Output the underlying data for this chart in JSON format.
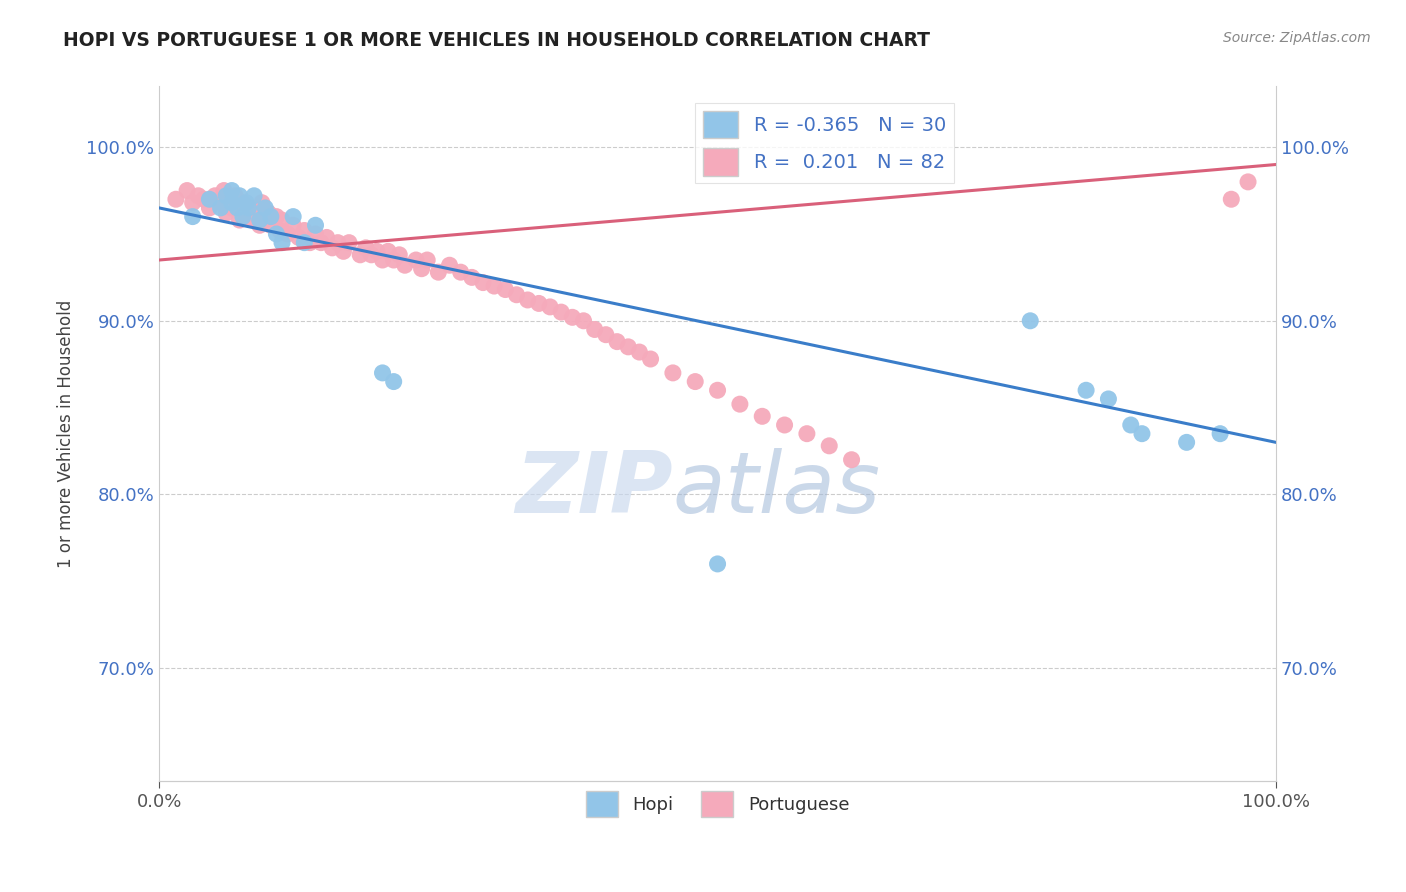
{
  "title": "HOPI VS PORTUGUESE 1 OR MORE VEHICLES IN HOUSEHOLD CORRELATION CHART",
  "source_text": "Source: ZipAtlas.com",
  "ylabel": "1 or more Vehicles in Household",
  "xlim": [
    0.0,
    1.0
  ],
  "ylim": [
    0.635,
    1.035
  ],
  "yticks": [
    0.7,
    0.8,
    0.9,
    1.0
  ],
  "ytick_labels": [
    "70.0%",
    "80.0%",
    "90.0%",
    "100.0%"
  ],
  "xtick_labels": [
    "0.0%",
    "100.0%"
  ],
  "hopi_R": -0.365,
  "hopi_N": 30,
  "portuguese_R": 0.201,
  "portuguese_N": 82,
  "hopi_color": "#92C5E8",
  "portuguese_color": "#F5AABB",
  "hopi_line_color": "#3A7DC9",
  "portuguese_line_color": "#D9607A",
  "watermark_zip": "ZIP",
  "watermark_atlas": "atlas",
  "hopi_x": [
    0.03,
    0.045,
    0.055,
    0.06,
    0.065,
    0.065,
    0.07,
    0.072,
    0.075,
    0.078,
    0.08,
    0.085,
    0.09,
    0.095,
    0.1,
    0.105,
    0.11,
    0.12,
    0.13,
    0.14,
    0.2,
    0.21,
    0.5,
    0.78,
    0.83,
    0.85,
    0.87,
    0.88,
    0.92,
    0.95
  ],
  "hopi_y": [
    0.96,
    0.97,
    0.965,
    0.972,
    0.968,
    0.975,
    0.965,
    0.972,
    0.96,
    0.968,
    0.965,
    0.972,
    0.958,
    0.965,
    0.96,
    0.95,
    0.945,
    0.96,
    0.945,
    0.955,
    0.87,
    0.865,
    0.76,
    0.9,
    0.86,
    0.855,
    0.84,
    0.835,
    0.83,
    0.835
  ],
  "portuguese_x": [
    0.015,
    0.025,
    0.03,
    0.035,
    0.04,
    0.045,
    0.05,
    0.055,
    0.058,
    0.06,
    0.062,
    0.065,
    0.068,
    0.072,
    0.075,
    0.08,
    0.082,
    0.085,
    0.088,
    0.09,
    0.092,
    0.095,
    0.098,
    0.1,
    0.105,
    0.108,
    0.11,
    0.115,
    0.12,
    0.125,
    0.13,
    0.135,
    0.14,
    0.145,
    0.15,
    0.155,
    0.16,
    0.165,
    0.17,
    0.18,
    0.185,
    0.19,
    0.195,
    0.2,
    0.205,
    0.21,
    0.215,
    0.22,
    0.23,
    0.235,
    0.24,
    0.25,
    0.26,
    0.27,
    0.28,
    0.29,
    0.3,
    0.31,
    0.32,
    0.33,
    0.34,
    0.35,
    0.36,
    0.37,
    0.38,
    0.39,
    0.4,
    0.41,
    0.42,
    0.43,
    0.44,
    0.46,
    0.48,
    0.5,
    0.52,
    0.54,
    0.56,
    0.58,
    0.6,
    0.62,
    0.96,
    0.975
  ],
  "portuguese_y": [
    0.97,
    0.975,
    0.968,
    0.972,
    0.97,
    0.965,
    0.972,
    0.968,
    0.975,
    0.962,
    0.97,
    0.965,
    0.972,
    0.958,
    0.968,
    0.96,
    0.965,
    0.958,
    0.962,
    0.955,
    0.968,
    0.958,
    0.962,
    0.955,
    0.96,
    0.952,
    0.958,
    0.95,
    0.955,
    0.948,
    0.952,
    0.945,
    0.95,
    0.945,
    0.948,
    0.942,
    0.945,
    0.94,
    0.945,
    0.938,
    0.942,
    0.938,
    0.94,
    0.935,
    0.94,
    0.935,
    0.938,
    0.932,
    0.935,
    0.93,
    0.935,
    0.928,
    0.932,
    0.928,
    0.925,
    0.922,
    0.92,
    0.918,
    0.915,
    0.912,
    0.91,
    0.908,
    0.905,
    0.902,
    0.9,
    0.895,
    0.892,
    0.888,
    0.885,
    0.882,
    0.878,
    0.87,
    0.865,
    0.86,
    0.852,
    0.845,
    0.84,
    0.835,
    0.828,
    0.82,
    0.97,
    0.98
  ]
}
